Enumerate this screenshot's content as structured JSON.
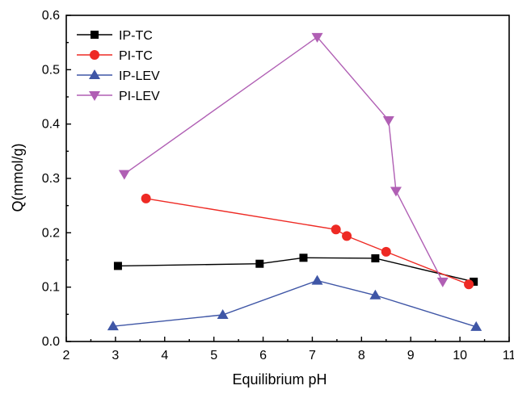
{
  "chart_data": {
    "type": "line",
    "title": "",
    "xlabel": "Equilibrium pH",
    "ylabel": "Q(mmol/g)",
    "xlim": [
      2,
      11
    ],
    "ylim": [
      0.0,
      0.6
    ],
    "xticks": [
      2,
      3,
      4,
      5,
      6,
      7,
      8,
      9,
      10,
      11
    ],
    "yticks": [
      0.0,
      0.1,
      0.2,
      0.3,
      0.4,
      0.5,
      0.6
    ],
    "xtick_labels": [
      "2",
      "3",
      "4",
      "5",
      "6",
      "7",
      "8",
      "9",
      "10",
      "11"
    ],
    "ytick_labels": [
      "0.0",
      "0.1",
      "0.2",
      "0.3",
      "0.4",
      "0.5",
      "0.6"
    ],
    "grid": false,
    "legend_position": "top-left",
    "series": [
      {
        "name": "IP-TC",
        "color": "#000000",
        "marker": "square",
        "x": [
          3.05,
          5.93,
          6.82,
          8.28,
          10.28
        ],
        "y": [
          0.139,
          0.143,
          0.154,
          0.153,
          0.11
        ]
      },
      {
        "name": "PI-TC",
        "color": "#ee2a24",
        "marker": "circle",
        "x": [
          3.62,
          7.48,
          7.7,
          8.5,
          10.18
        ],
        "y": [
          0.263,
          0.206,
          0.194,
          0.165,
          0.105
        ]
      },
      {
        "name": "IP-LEV",
        "color": "#3f56a6",
        "marker": "triangle-up",
        "x": [
          2.95,
          5.18,
          7.1,
          8.28,
          10.33
        ],
        "y": [
          0.028,
          0.049,
          0.112,
          0.085,
          0.027
        ]
      },
      {
        "name": "PI-LEV",
        "color": "#b05fb4",
        "marker": "triangle-down",
        "x": [
          3.18,
          7.1,
          8.55,
          8.7,
          9.65
        ],
        "y": [
          0.308,
          0.56,
          0.407,
          0.277,
          0.11
        ]
      }
    ]
  }
}
